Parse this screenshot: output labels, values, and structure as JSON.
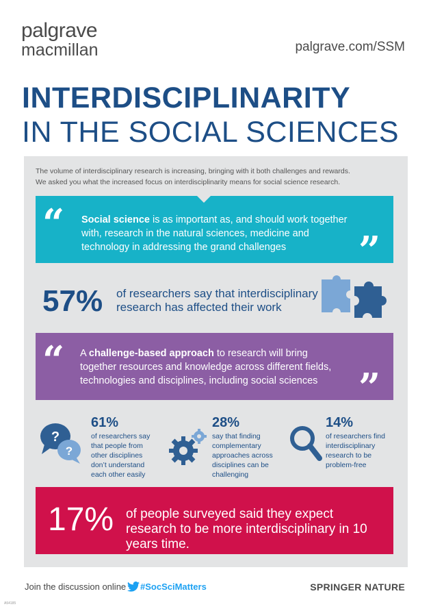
{
  "header": {
    "logo_line1": "palgrave",
    "logo_line2": "macmillan",
    "url": "palgrave.com/SSM"
  },
  "title": {
    "line1": "INTERDISCIPLINARITY",
    "line2": "IN THE SOCIAL SCIENCES"
  },
  "intro": {
    "line1": "The volume of interdisciplinary research is increasing, bringing with it both challenges and rewards.",
    "line2": "We asked you what the increased focus on interdisciplinarity means for social science research."
  },
  "quote1": {
    "bold": "Social science",
    "text": " is as important as, and should work together with, research in the natural sciences, medicine and technology in addressing the grand challenges"
  },
  "stat57": {
    "value": "57%",
    "text": "of researchers say that interdisciplinary research has affected their work"
  },
  "quote2": {
    "prefix": "A ",
    "bold": "challenge-based approach",
    "text": " to research will bring together resources and knowledge across different fields, technologies and disciplines, including social sciences"
  },
  "small_stats": [
    {
      "value": "61%",
      "text": "of researchers say that people from other disciplines don’t understand each other easily"
    },
    {
      "value": "28%",
      "text": "say that finding complementary approaches across disciplines can be challenging"
    },
    {
      "value": "14%",
      "text": "of researchers find interdisciplinary research to be problem-free"
    }
  ],
  "stat17": {
    "value": "17%",
    "text": "of people surveyed said they expect research to be more interdisciplinary in 10 years time."
  },
  "footer": {
    "join": "Join the discussion online",
    "hashtag": "#SocSciMatters",
    "brand": "SPRINGER NATURE",
    "ref": "A54185"
  },
  "colors": {
    "navy": "#1d4e86",
    "cyan": "#17b2c8",
    "purple": "#8c5ea4",
    "crimson": "#d0114b",
    "panel": "#e3e4e5",
    "puzzle_light": "#7ba7d6",
    "puzzle_dark": "#2f5f93"
  },
  "icons": [
    "question-bubbles-icon",
    "gears-icon",
    "magnifier-icon",
    "puzzle-icon",
    "twitter-icon",
    "quote-open-icon",
    "quote-close-icon"
  ]
}
